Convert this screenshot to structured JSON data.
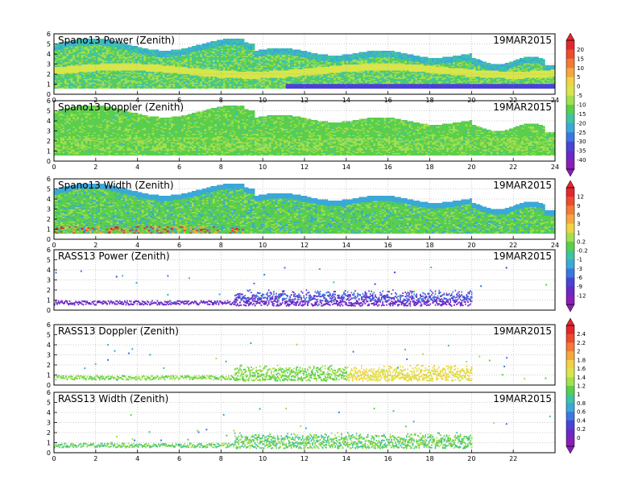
{
  "figure": {
    "colorbars": [
      {
        "panels": [
          0,
          1
        ],
        "labels": [
          "20",
          "15",
          "10",
          "5",
          "0",
          "-5",
          "-10",
          "-15",
          "-20",
          "-25",
          "-30",
          "-35",
          "-40"
        ],
        "colors": [
          "#e4262d",
          "#ef4a2c",
          "#f47a33",
          "#f6a63b",
          "#f2d241",
          "#d8e64b",
          "#a3e04c",
          "#59cf4a",
          "#3ec4a3",
          "#39a9d8",
          "#3b77e2",
          "#4a43d6",
          "#6b28c7",
          "#8a1fb6"
        ]
      },
      {
        "panels": [
          2,
          3
        ],
        "labels": [
          "12",
          "9",
          "6",
          "3",
          "1",
          "0.2",
          "-0.2",
          "-1",
          "-3",
          "-6",
          "-9",
          "-12"
        ],
        "colors": [
          "#e4262d",
          "#ef4a2c",
          "#f47a33",
          "#f6a63b",
          "#f2d241",
          "#a3e04c",
          "#59cf4a",
          "#3ec4a3",
          "#39a9d8",
          "#3b77e2",
          "#4a43d6",
          "#6b28c7",
          "#8a1fb6"
        ]
      },
      {
        "panels": [
          4,
          5
        ],
        "labels": [
          "2.4",
          "2.2",
          "2",
          "1.8",
          "1.6",
          "1.4",
          "1.2",
          "1",
          "0.8",
          "0.6",
          "0.4",
          "0.2",
          "0"
        ],
        "colors": [
          "#e4262d",
          "#ef4a2c",
          "#f47a33",
          "#f6a63b",
          "#f2d241",
          "#d8e64b",
          "#a3e04c",
          "#59cf4a",
          "#3ec4a3",
          "#39a9d8",
          "#3b77e2",
          "#4a43d6",
          "#6b28c7",
          "#8a1fb6"
        ]
      }
    ]
  },
  "chart_data": [
    {
      "type": "heatmap",
      "title": "Spano13 Power (Zenith)",
      "date": "19MAR2015",
      "xlim": [
        0,
        24
      ],
      "ylim": [
        0,
        6
      ],
      "xticks": [
        0,
        2,
        4,
        6,
        8,
        10,
        12,
        14,
        16,
        18,
        20,
        22,
        24
      ],
      "yticks": [
        0,
        1,
        2,
        3,
        4,
        5,
        6
      ],
      "variable": "power",
      "grid": true
    },
    {
      "type": "heatmap",
      "title": "Spano13 Doppler (Zenith)",
      "date": "19MAR2015",
      "xlim": [
        0,
        24
      ],
      "ylim": [
        0,
        6
      ],
      "xticks": [
        0,
        2,
        4,
        6,
        8,
        10,
        12,
        14,
        16,
        18,
        20,
        22,
        24
      ],
      "yticks": [
        0,
        1,
        2,
        3,
        4,
        5,
        6
      ],
      "variable": "doppler",
      "grid": true
    },
    {
      "type": "heatmap",
      "title": "Spano13 Width (Zenith)",
      "date": "19MAR2015",
      "xlim": [
        0,
        24
      ],
      "ylim": [
        0,
        6
      ],
      "xticks": [
        0,
        2,
        4,
        6,
        8,
        10,
        12,
        14,
        16,
        18,
        20,
        22,
        24
      ],
      "yticks": [
        0,
        1,
        2,
        3,
        4,
        5,
        6
      ],
      "variable": "width",
      "grid": true
    },
    {
      "type": "scatter",
      "title": "RASS13 Power (Zenith)",
      "date": "19MAR2015",
      "xlim": [
        0,
        24
      ],
      "ylim": [
        0,
        6
      ],
      "xticks": [],
      "yticks": [
        0,
        1,
        2,
        3,
        4,
        5,
        6
      ],
      "variable": "rass_power",
      "grid": true
    },
    {
      "type": "scatter",
      "title": "RASS13 Doppler (Zenith)",
      "date": "19MAR2015",
      "xlim": [
        0,
        24
      ],
      "ylim": [
        0,
        6
      ],
      "xticks": [],
      "yticks": [
        0,
        1,
        2,
        3,
        4,
        5,
        6
      ],
      "variable": "rass_doppler",
      "grid": true
    },
    {
      "type": "scatter",
      "title": "RASS13 Width (Zenith)",
      "date": "19MAR2015",
      "xlim": [
        0,
        24
      ],
      "ylim": [
        0,
        6
      ],
      "xticks": [
        0,
        2,
        4,
        6,
        8,
        10,
        12,
        14,
        16,
        18,
        20,
        22
      ],
      "yticks": [
        0,
        1,
        2,
        3,
        4,
        5,
        6
      ],
      "variable": "rass_width",
      "grid": true
    }
  ]
}
